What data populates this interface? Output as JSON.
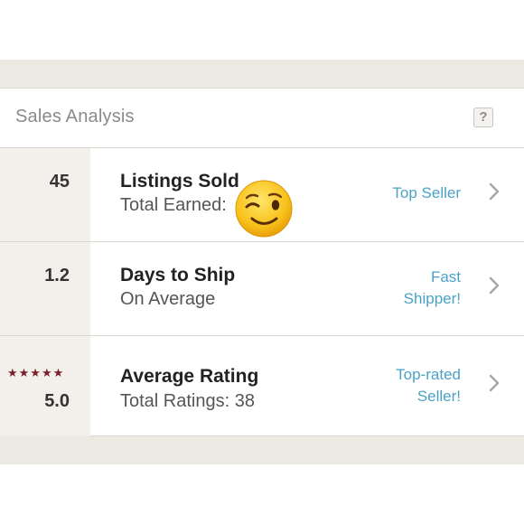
{
  "header": {
    "title": "Sales Analysis",
    "help_label": "?"
  },
  "rows": [
    {
      "stat": "45",
      "title": "Listings Sold",
      "subtitle": "Total Earned:",
      "badge_lines": [
        "Top Seller"
      ]
    },
    {
      "stat": "1.2",
      "title": "Days to Ship",
      "subtitle": "On Average",
      "badge_lines": [
        "Fast",
        "Shipper!"
      ]
    },
    {
      "stat": "5.0",
      "title": "Average Rating",
      "subtitle": "Total Ratings: 38",
      "badge_lines": [
        "Top-rated",
        "Seller!"
      ],
      "stars": 5
    }
  ],
  "stars_glyphs": "★★★★★",
  "icons": {
    "chevron": "chevron-right-icon",
    "emoji": "winking-face-emoji",
    "stars": "star-icon"
  },
  "colors": {
    "accent": "#4aa3c4",
    "star": "#7a1f2b",
    "panel": "#ece9e3",
    "stat_bg": "#f3f0eb"
  }
}
